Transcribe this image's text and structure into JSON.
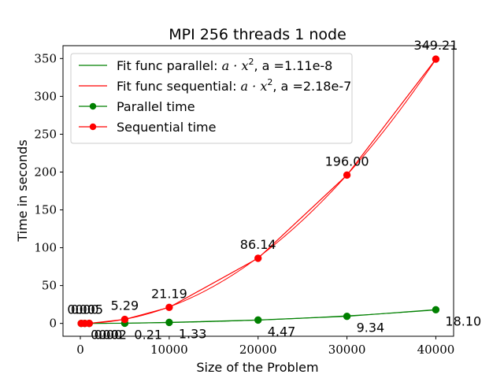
{
  "chart_data": {
    "type": "line",
    "title": "MPI 256 threads 1 node",
    "xlabel": "Size of the Problem",
    "ylabel": "Time in seconds",
    "xlim": [
      -1950,
      42000
    ],
    "ylim": [
      -17,
      367
    ],
    "xticks": [
      0,
      10000,
      20000,
      30000,
      40000
    ],
    "xtick_labels": [
      "0",
      "10000",
      "20000",
      "30000",
      "40000"
    ],
    "yticks": [
      0,
      50,
      100,
      150,
      200,
      250,
      300,
      350
    ],
    "ytick_labels": [
      "0",
      "50",
      "100",
      "150",
      "200",
      "250",
      "300",
      "350"
    ],
    "grid": false,
    "legend_position": "top-left",
    "legend": [
      {
        "label": "Fit func parallel:",
        "formula_prefix": "a · x",
        "exponent": "2",
        "formula_suffix": ", a =1.11e-8",
        "color": "#008000",
        "marker": false
      },
      {
        "label": "Fit func sequential:",
        "formula_prefix": "a · x",
        "exponent": "2",
        "formula_suffix": ", a =2.18e-7",
        "color": "#ff0000",
        "marker": false
      },
      {
        "label": "Parallel time",
        "color": "#008000",
        "marker": true
      },
      {
        "label": "Sequential time",
        "color": "#ff0000",
        "marker": true
      }
    ],
    "x": [
      100,
      500,
      1000,
      5000,
      10000,
      20000,
      30000,
      40000
    ],
    "series": [
      {
        "name": "Parallel time",
        "color": "#008000",
        "values": [
          0.0,
          0.0,
          0.02,
          0.21,
          1.33,
          4.47,
          9.34,
          18.1
        ],
        "labels": [
          "0.00",
          "0.00",
          "0.02",
          "0.21",
          "1.33",
          "4.47",
          "9.34",
          "18.10"
        ]
      },
      {
        "name": "Sequential time",
        "color": "#ff0000",
        "values": [
          0.0,
          0.0,
          0.05,
          5.29,
          21.19,
          86.14,
          196.0,
          349.21
        ],
        "labels": [
          "0.00",
          "0.00",
          "0.05",
          "5.29",
          "21.19",
          "86.14",
          "196.00",
          "349.21"
        ]
      }
    ],
    "fits": [
      {
        "name": "Fit func parallel",
        "coefficient": 1.11e-08,
        "power": 2,
        "color": "#008000"
      },
      {
        "name": "Fit func sequential",
        "coefficient": 2.18e-07,
        "power": 2,
        "color": "#ff0000"
      }
    ]
  }
}
